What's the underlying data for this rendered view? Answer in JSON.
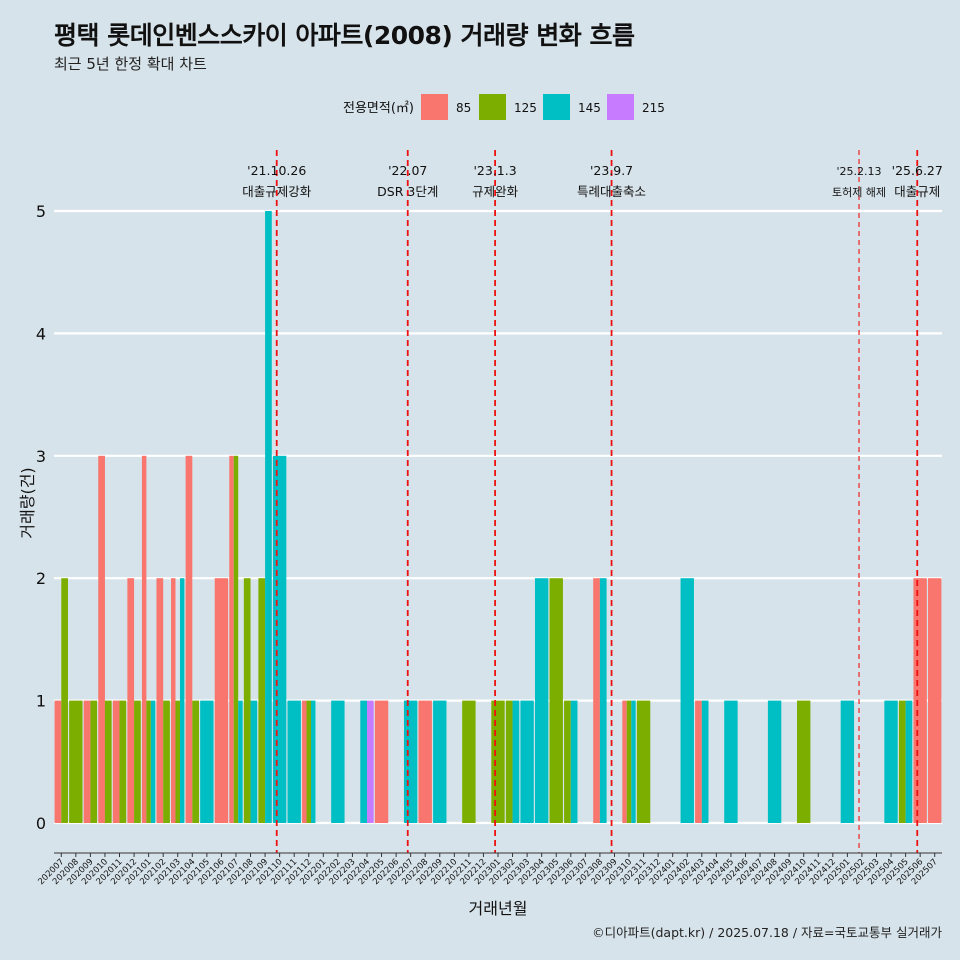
{
  "chart_data": {
    "type": "bar",
    "title": "평택 롯데인벤스스카이 아파트(2008) 거래량 변화 흐름",
    "subtitle": "최근 5년 한정 확대 차트",
    "xlabel": "거래년월",
    "ylabel": "거래량(건)",
    "ylim": [
      0,
      5
    ],
    "yticks": [
      0,
      1,
      2,
      3,
      4,
      5
    ],
    "legend": {
      "title": "전용면적(㎡)",
      "placement": "top",
      "entries": [
        {
          "name": "85",
          "color": "#F8766D"
        },
        {
          "name": "125",
          "color": "#7CAE00"
        },
        {
          "name": "145",
          "color": "#00BFC4"
        },
        {
          "name": "215",
          "color": "#C77CFF"
        }
      ]
    },
    "categories": [
      "202007",
      "202008",
      "202009",
      "202010",
      "202011",
      "202012",
      "202101",
      "202102",
      "202103",
      "202104",
      "202105",
      "202106",
      "202107",
      "202108",
      "202109",
      "202110",
      "202111",
      "202112",
      "202201",
      "202202",
      "202203",
      "202204",
      "202205",
      "202206",
      "202207",
      "202208",
      "202209",
      "202210",
      "202211",
      "202212",
      "202301",
      "202302",
      "202303",
      "202304",
      "202305",
      "202306",
      "202307",
      "202308",
      "202309",
      "202310",
      "202311",
      "202312",
      "202401",
      "202402",
      "202403",
      "202404",
      "202405",
      "202406",
      "202407",
      "202408",
      "202409",
      "202410",
      "202411",
      "202412",
      "202501",
      "202502",
      "202503",
      "202504",
      "202505",
      "202506",
      "202507"
    ],
    "series": [
      {
        "name": "85",
        "values": [
          1,
          0,
          1,
          3,
          1,
          2,
          3,
          2,
          2,
          3,
          0,
          2,
          3,
          0,
          0,
          0,
          0,
          1,
          0,
          0,
          0,
          0,
          1,
          0,
          0,
          1,
          0,
          0,
          0,
          0,
          0,
          0,
          0,
          0,
          0,
          0,
          0,
          2,
          0,
          1,
          0,
          0,
          0,
          0,
          1,
          0,
          0,
          0,
          0,
          0,
          0,
          0,
          0,
          0,
          0,
          0,
          0,
          0,
          0,
          2,
          2
        ]
      },
      {
        "name": "125",
        "values": [
          2,
          1,
          1,
          1,
          1,
          1,
          1,
          1,
          1,
          1,
          0,
          0,
          3,
          2,
          2,
          0,
          0,
          1,
          0,
          0,
          0,
          0,
          0,
          0,
          0,
          0,
          0,
          0,
          1,
          0,
          1,
          1,
          0,
          0,
          2,
          1,
          0,
          0,
          0,
          1,
          1,
          0,
          0,
          0,
          0,
          0,
          0,
          0,
          0,
          0,
          0,
          1,
          0,
          0,
          0,
          0,
          0,
          0,
          1,
          0,
          0
        ]
      },
      {
        "name": "145",
        "values": [
          0,
          0,
          0,
          0,
          0,
          0,
          1,
          0,
          2,
          0,
          1,
          0,
          1,
          1,
          5,
          3,
          1,
          1,
          0,
          1,
          0,
          1,
          0,
          0,
          1,
          0,
          1,
          0,
          0,
          0,
          0,
          1,
          1,
          2,
          0,
          1,
          0,
          2,
          0,
          1,
          0,
          0,
          0,
          2,
          1,
          0,
          1,
          0,
          0,
          1,
          0,
          0,
          0,
          0,
          1,
          0,
          0,
          1,
          1,
          0,
          0
        ]
      },
      {
        "name": "215",
        "values": [
          0,
          0,
          0,
          0,
          0,
          0,
          0,
          0,
          0,
          0,
          0,
          0,
          0,
          0,
          0,
          0,
          0,
          0,
          0,
          0,
          0,
          1,
          0,
          0,
          0,
          0,
          0,
          0,
          0,
          0,
          0,
          0,
          0,
          0,
          0,
          0,
          0,
          0,
          0,
          0,
          0,
          0,
          0,
          0,
          0,
          0,
          0,
          0,
          0,
          0,
          0,
          0,
          0,
          0,
          0,
          0,
          0,
          0,
          0,
          0,
          0
        ]
      }
    ],
    "events": [
      {
        "date_label": "'21.10.26",
        "text": "대출규제강화",
        "at_month": 15.3,
        "style": "heavy"
      },
      {
        "date_label": "'22.07",
        "text": "DSR 3단계",
        "at_month": 24.3,
        "style": "heavy"
      },
      {
        "date_label": "'23.1.3",
        "text": "규제완화",
        "at_month": 30.3,
        "style": "heavy"
      },
      {
        "date_label": "'23.9.7",
        "text": "특례대출축소",
        "at_month": 38.3,
        "style": "heavy"
      },
      {
        "date_label": "'25.2.13",
        "text": "토허제 해제",
        "at_month": 55.3,
        "style": "light"
      },
      {
        "date_label": "'25.6.27",
        "text": "대출규제",
        "at_month": 59.3,
        "style": "heavy"
      }
    ],
    "caption": "©디아파트(dapt.kr) / 2025.07.18 / 자료=국토교통부 실거래가"
  }
}
